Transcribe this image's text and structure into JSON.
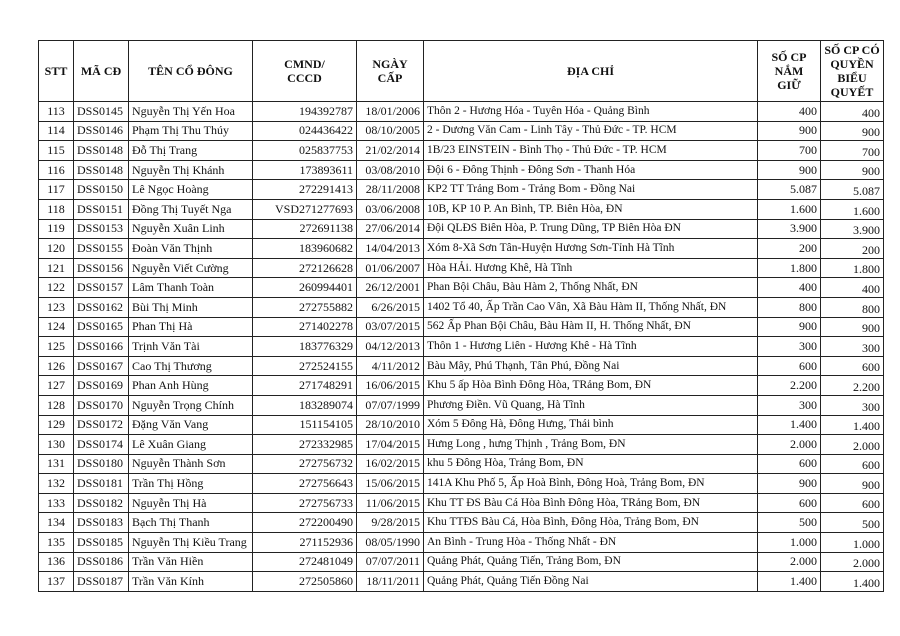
{
  "table": {
    "header": [
      [
        "STT"
      ],
      [
        "MÃ CĐ"
      ],
      [
        "TÊN CỔ ĐÔNG"
      ],
      [
        "CMND/",
        "CCCD"
      ],
      [
        "NGÀY",
        "CẤP"
      ],
      [
        "ĐỊA CHỈ"
      ],
      [
        "SỐ CP",
        "NẮM",
        "GIỮ"
      ],
      [
        "SỐ CP CÓ",
        "QUYỀN",
        "BIỂU",
        "QUYẾT"
      ]
    ],
    "rows": [
      [
        "113",
        "DSS0145",
        "Nguyễn Thị Yến Hoa",
        "194392787",
        "18/01/2006",
        "Thôn 2 - Hương Hóa - Tuyên Hóa - Quảng Bình",
        "400",
        "400"
      ],
      [
        "114",
        "DSS0146",
        "Phạm Thị Thu Thúy",
        "024436422",
        "08/10/2005",
        "2 - Dương Văn Cam - Linh Tây - Thủ Đức - TP. HCM",
        "900",
        "900"
      ],
      [
        "115",
        "DSS0148",
        "Đỗ Thị Trang",
        "025837753",
        "21/02/2014",
        "1B/23 EINSTEIN - Bình Thọ - Thủ Đức - TP. HCM",
        "700",
        "700"
      ],
      [
        "116",
        "DSS0148",
        "Nguyễn Thị Khánh",
        "173893611",
        "03/08/2010",
        "Đội 6 - Đông Thịnh - Đông Sơn - Thanh Hóa",
        "900",
        "900"
      ],
      [
        "117",
        "DSS0150",
        "Lê Ngọc Hoàng",
        "272291413",
        "28/11/2008",
        "KP2 TT Trảng Bom - Trảng Bom - Đồng Nai",
        "5.087",
        "5.087"
      ],
      [
        "118",
        "DSS0151",
        "Đồng Thị Tuyết Nga",
        "VSD271277693",
        "03/06/2008",
        "10B, KP 10 P. An Bình, TP. Biên Hòa, ĐN",
        "1.600",
        "1.600"
      ],
      [
        "119",
        "DSS0153",
        "Nguyễn Xuân Linh",
        "272691138",
        "27/06/2014",
        "Đội QLĐS Biên Hòa, P. Trung Dũng, TP Biên Hòa  ĐN",
        "3.900",
        "3.900"
      ],
      [
        "120",
        "DSS0155",
        "Đoàn Văn Thịnh",
        "183960682",
        "14/04/2013",
        "Xóm 8-Xã Sơn Tân-Huyện Hương Sơn-Tỉnh Hà Tĩnh",
        "200",
        "200"
      ],
      [
        "121",
        "DSS0156",
        "Nguyễn Viết Cường",
        "272126628",
        "01/06/2007",
        "Hòa HẢi. Hương Khê, Hà Tĩnh",
        "1.800",
        "1.800"
      ],
      [
        "122",
        "DSS0157",
        "Lâm Thanh Toàn",
        "260994401",
        "26/12/2001",
        "Phan Bội Châu, Bàu Hàm 2, Thống Nhất, ĐN",
        "400",
        "400"
      ],
      [
        "123",
        "DSS0162",
        "Bùi Thị Minh",
        "272755882",
        "6/26/2015",
        "1402 Tổ 40, Ấp Trần Cao Vân, Xã Bàu Hàm II, Thống Nhất, ĐN",
        "800",
        "800"
      ],
      [
        "124",
        "DSS0165",
        "Phan Thị Hà",
        "271402278",
        "03/07/2015",
        "562 Ấp Phan Bội Châu, Bàu Hàm II, H. Thống Nhất, ĐN",
        "900",
        "900"
      ],
      [
        "125",
        "DSS0166",
        "Trịnh Văn Tài",
        "183776329",
        "04/12/2013",
        "Thôn 1 - Hương Liên - Hương Khê - Hà Tĩnh",
        "300",
        "300"
      ],
      [
        "126",
        "DSS0167",
        "Cao Thị Thương",
        "272524155",
        "4/11/2012",
        "Bàu Mây, Phú Thạnh, Tân Phú, Đồng Nai",
        "600",
        "600"
      ],
      [
        "127",
        "DSS0169",
        "Phan Anh Hùng",
        "271748291",
        "16/06/2015",
        "Khu 5 ấp Hòa Bình Đông Hòa, TRảng Bom, ĐN",
        "2.200",
        "2.200"
      ],
      [
        "128",
        "DSS0170",
        "Nguyễn Trọng Chính",
        "183289074",
        "07/07/1999",
        "Phương Điền. Vũ Quang, Hà Tĩnh",
        "300",
        "300"
      ],
      [
        "129",
        "DSS0172",
        "Đặng Văn Vang",
        "151154105",
        "28/10/2010",
        "Xóm 5 Đông Hà, Đông Hưng, Thái bình",
        "1.400",
        "1.400"
      ],
      [
        "130",
        "DSS0174",
        "Lê Xuân Giang",
        "272332985",
        "17/04/2015",
        "Hưng Long , hưng Thịnh , Trảng Bom, ĐN",
        "2.000",
        "2.000"
      ],
      [
        "131",
        "DSS0180",
        "Nguyễn Thành Sơn",
        "272756732",
        "16/02/2015",
        "khu 5 Đông Hòa, Trảng Bom, ĐN",
        "600",
        "600"
      ],
      [
        "132",
        "DSS0181",
        "Trần Thị Hồng",
        "272756643",
        "15/06/2015",
        "141A Khu Phố 5, Ấp Hoà Bình, Đông Hoà, Trảng Bom, ĐN",
        "900",
        "900"
      ],
      [
        "133",
        "DSS0182",
        "Nguyễn Thị Hà",
        "272756733",
        "11/06/2015",
        "Khu TT ĐS Bàu Cá Hòa Bình Đông Hòa, TRảng Bom, ĐN",
        "600",
        "600"
      ],
      [
        "134",
        "DSS0183",
        "Bạch Thị Thanh",
        "272200490",
        "9/28/2015",
        "Khu TTĐS Bàu Cá, Hòa Bình, Đông Hòa, Trảng Bom, ĐN",
        "500",
        "500"
      ],
      [
        "135",
        "DSS0185",
        "Nguyễn Thị Kiều Trang",
        "271152936",
        "08/05/1990",
        "An Bình - Trung Hòa - Thống Nhất - ĐN",
        "1.000",
        "1.000"
      ],
      [
        "136",
        "DSS0186",
        "Trần Văn Hiền",
        "272481049",
        "07/07/2011",
        "Quảng Phát, Quảng Tiến, Trảng Bom, ĐN",
        "2.000",
        "2.000"
      ],
      [
        "137",
        "DSS0187",
        "Trần Văn Kính",
        "272505860",
        "18/11/2011",
        "Quảng Phát, Quảng Tiến  Đồng Nai",
        "1.400",
        "1.400"
      ]
    ]
  }
}
